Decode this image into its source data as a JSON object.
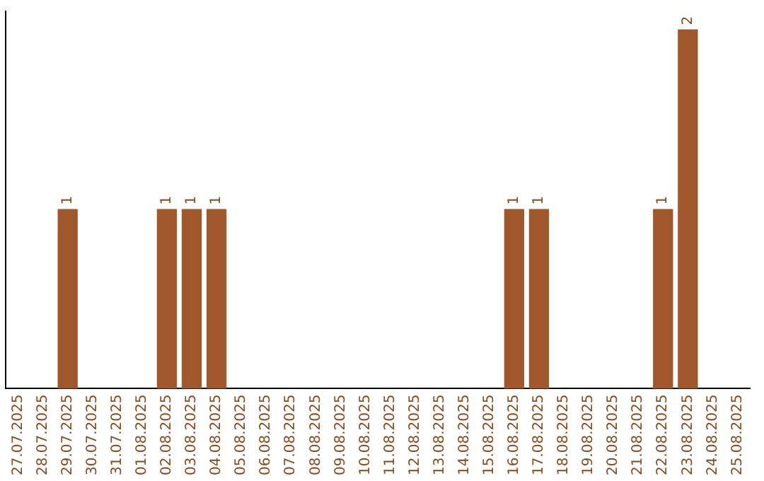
{
  "chart_data": {
    "type": "bar",
    "categories": [
      "27.07.2025",
      "28.07.2025",
      "29.07.2025",
      "30.07.2025",
      "31.07.2025",
      "01.08.2025",
      "02.08.2025",
      "03.08.2025",
      "04.08.2025",
      "05.08.2025",
      "06.08.2025",
      "07.08.2025",
      "08.08.2025",
      "09.08.2025",
      "10.08.2025",
      "11.08.2025",
      "12.08.2025",
      "13.08.2025",
      "14.08.2025",
      "15.08.2025",
      "16.08.2025",
      "17.08.2025",
      "18.08.2025",
      "19.08.2025",
      "20.08.2025",
      "21.08.2025",
      "22.08.2025",
      "23.08.2025",
      "24.08.2025",
      "25.08.2025"
    ],
    "values": [
      0,
      0,
      1,
      0,
      0,
      0,
      1,
      1,
      1,
      0,
      0,
      0,
      0,
      0,
      0,
      0,
      0,
      0,
      0,
      0,
      1,
      1,
      0,
      0,
      0,
      0,
      1,
      2,
      0,
      0
    ],
    "value_labels": [
      null,
      null,
      "1",
      null,
      null,
      null,
      "1",
      "1",
      "1",
      null,
      null,
      null,
      null,
      null,
      null,
      null,
      null,
      null,
      null,
      null,
      "1",
      "1",
      null,
      null,
      null,
      null,
      "1",
      "2",
      null,
      null
    ],
    "color": "#a0582a",
    "ylim": [
      0,
      2.1
    ],
    "tick_labels": "x",
    "grid": false,
    "legend": false
  }
}
